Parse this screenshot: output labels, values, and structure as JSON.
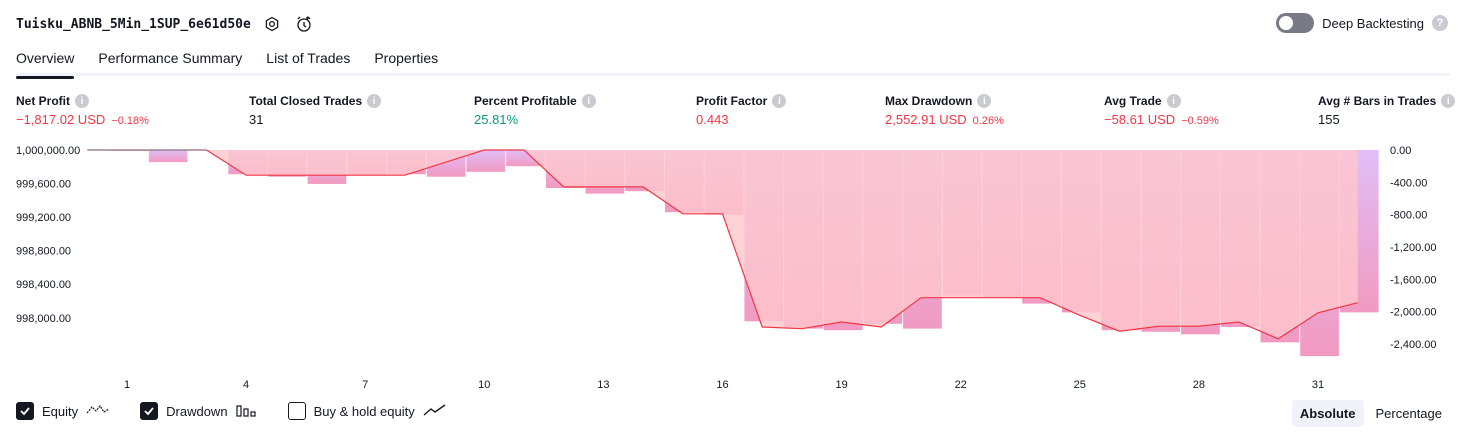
{
  "header": {
    "strategy_name": "Tuisku_ABNB_5Min_1SUP_6e61d50e",
    "deep_backtesting_label": "Deep Backtesting",
    "deep_backtesting_on": false
  },
  "tabs": [
    {
      "label": "Overview",
      "active": true
    },
    {
      "label": "Performance Summary",
      "active": false
    },
    {
      "label": "List of Trades",
      "active": false
    },
    {
      "label": "Properties",
      "active": false
    }
  ],
  "metrics": [
    {
      "label": "Net Profit",
      "value": "−1,817.02 USD",
      "sub": "−0.18%",
      "tone": "neg"
    },
    {
      "label": "Total Closed Trades",
      "value": "31",
      "sub": "",
      "tone": "neutral"
    },
    {
      "label": "Percent Profitable",
      "value": "25.81%",
      "sub": "",
      "tone": "pos"
    },
    {
      "label": "Profit Factor",
      "value": "0.443",
      "sub": "",
      "tone": "neg"
    },
    {
      "label": "Max Drawdown",
      "value": "2,552.91 USD",
      "sub": "0.26%",
      "tone": "neg"
    },
    {
      "label": "Avg Trade",
      "value": "−58.61 USD",
      "sub": "−0.59%",
      "tone": "neg"
    },
    {
      "label": "Avg # Bars in Trades",
      "value": "155",
      "sub": "",
      "tone": "neutral"
    }
  ],
  "colors": {
    "equity_line": "#f23645",
    "equity_fill_top": "#ffd3d6",
    "drawdown_bar_top": "#e1bef7",
    "drawdown_bar_bottom": "#f19ac1",
    "positive": "#089981",
    "negative": "#f23645"
  },
  "chart_data": {
    "type": "line",
    "x_label": "",
    "x_ticks": [
      "1",
      "4",
      "7",
      "10",
      "13",
      "16",
      "19",
      "22",
      "25",
      "28",
      "31"
    ],
    "left_axis": {
      "ticks": [
        "1,000,000.00",
        "999,600.00",
        "999,200.00",
        "998,800.00",
        "998,400.00",
        "998,000.00"
      ],
      "range": [
        997640,
        1000000
      ]
    },
    "right_axis": {
      "ticks": [
        "0.00",
        "-400.00",
        "-800.00",
        "-1,200.00",
        "-1,600.00",
        "-2,000.00",
        "-2,400.00"
      ],
      "range": [
        -2450,
        0
      ]
    },
    "series": [
      {
        "name": "Equity",
        "trades": [
          0,
          1,
          2,
          3,
          4,
          5,
          6,
          7,
          8,
          9,
          10,
          11,
          12,
          13,
          14,
          15,
          16,
          17,
          18,
          19,
          20,
          21,
          22,
          23,
          24,
          25,
          26,
          27,
          28,
          29,
          30,
          31,
          32
        ],
        "values": [
          1000000,
          1000000,
          1000000,
          1000000,
          999700,
          999700,
          999700,
          999700,
          999700,
          999850,
          1000000,
          1000000,
          999560,
          999560,
          999560,
          999240,
          999240,
          997890,
          997870,
          997950,
          997890,
          998240,
          998240,
          998240,
          998240,
          998030,
          997840,
          997900,
          997900,
          997950,
          997750,
          998060,
          998180
        ]
      },
      {
        "name": "Drawdown",
        "trades": [
          1,
          2,
          3,
          4,
          5,
          6,
          7,
          8,
          9,
          10,
          11,
          12,
          13,
          14,
          15,
          16,
          17,
          18,
          19,
          20,
          21,
          22,
          23,
          24,
          25,
          26,
          27,
          28,
          29,
          30,
          31,
          32
        ],
        "values": [
          -10,
          -150,
          0,
          -300,
          -330,
          -420,
          -310,
          -300,
          -330,
          -270,
          -200,
          -470,
          -540,
          -510,
          -770,
          -800,
          -2120,
          -2210,
          -2230,
          -2150,
          -2210,
          -1800,
          -1820,
          -1900,
          -2010,
          -2230,
          -2250,
          -2280,
          -2190,
          -2380,
          -2550,
          -2010
        ]
      }
    ],
    "legend": {
      "equity": {
        "label": "Equity",
        "checked": true
      },
      "drawdown": {
        "label": "Drawdown",
        "checked": true
      },
      "buy_hold": {
        "label": "Buy & hold equity",
        "checked": false
      }
    }
  },
  "mode": {
    "absolute": "Absolute",
    "percentage": "Percentage",
    "active": "absolute"
  }
}
